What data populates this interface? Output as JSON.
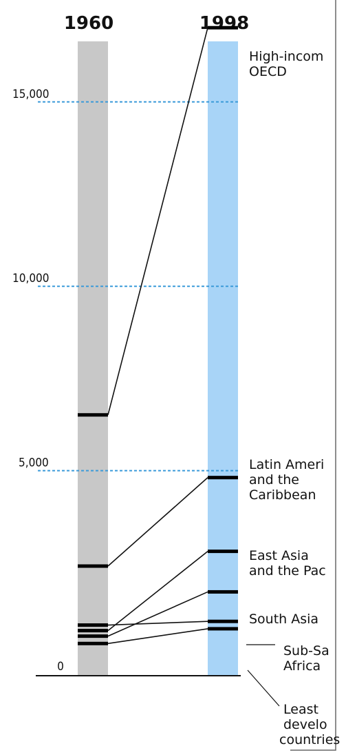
{
  "chart_data": {
    "type": "slope",
    "title": "",
    "xlabel": "",
    "ylabel": "",
    "categories": [
      "1960",
      "1998"
    ],
    "ylim": [
      0,
      17500
    ],
    "yticks": [
      {
        "value": 0,
        "label": "0"
      },
      {
        "value": 5000,
        "label": "5,000"
      },
      {
        "value": 10000,
        "label": "10,000"
      },
      {
        "value": 15000,
        "label": "15,000"
      }
    ],
    "series": [
      {
        "name": "High-income OECD",
        "label_lines": [
          "High-incom",
          "OECD"
        ],
        "values": [
          6400,
          16900
        ]
      },
      {
        "name": "Latin America and the Caribbean",
        "label_lines": [
          "Latin Ameri",
          "and the",
          "Caribbean"
        ],
        "values": [
          2300,
          4700
        ]
      },
      {
        "name": "East Asia and the Pacific",
        "label_lines": [
          "East  Asia",
          "and the Pac"
        ],
        "values": [
          550,
          2700
        ]
      },
      {
        "name": "South Asia",
        "label_lines": [
          "South Asia"
        ],
        "values": [
          400,
          1600
        ]
      },
      {
        "name": "Sub-Saharan Africa",
        "label_lines": [
          "Sub-Sa",
          "Africa"
        ],
        "values": [
          700,
          800
        ]
      },
      {
        "name": "Least developed countries",
        "label_lines": [
          "Least",
          "develo",
          "countries"
        ],
        "values": [
          200,
          600
        ]
      }
    ],
    "grid": true,
    "gridline_values": [
      5000,
      10000,
      15000
    ],
    "colors": {
      "bar_1960": "#c8c8c8",
      "bar_1998": "#a8d4f7",
      "grid": "#3a9ad9",
      "line": "#111111"
    }
  }
}
